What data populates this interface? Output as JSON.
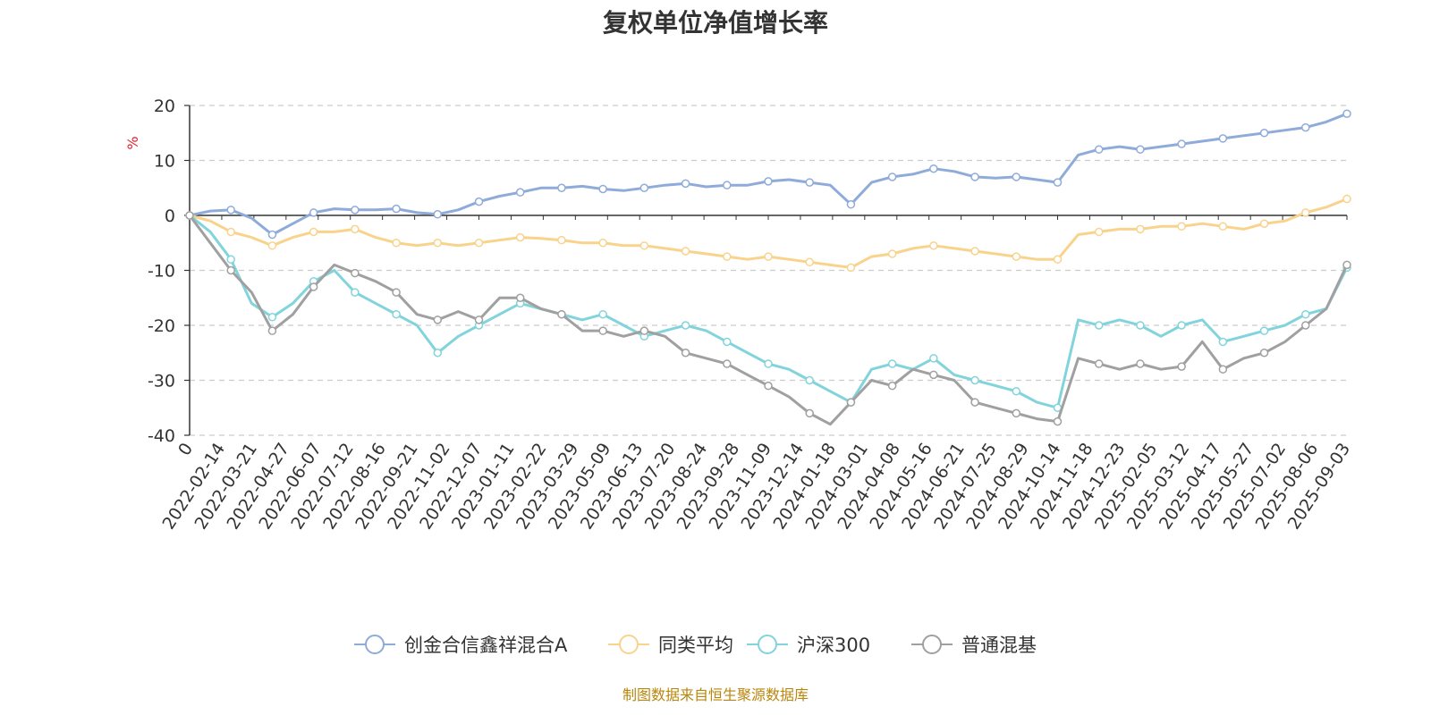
{
  "title": "复权单位净值增长率",
  "footer": "制图数据来自恒生聚源数据库",
  "chart_data": {
    "type": "line",
    "title": "复权单位净值增长率",
    "ylabel": "%",
    "ylim": [
      -40,
      20
    ],
    "yticks": [
      20,
      10,
      0,
      -10,
      -20,
      -30,
      -40
    ],
    "xtick_labels": [
      "0",
      "2022-02-14",
      "2022-03-21",
      "2022-04-27",
      "2022-06-07",
      "2022-07-12",
      "2022-08-16",
      "2022-09-21",
      "2022-11-02",
      "2022-12-07",
      "2023-01-11",
      "2023-02-22",
      "2023-03-29",
      "2023-05-09",
      "2023-06-13",
      "2023-07-20",
      "2023-08-24",
      "2023-09-28",
      "2023-11-09",
      "2023-12-14",
      "2024-01-18",
      "2024-03-01",
      "2024-04-08",
      "2024-05-16",
      "2024-06-21",
      "2024-07-25",
      "2024-08-29",
      "2024-10-14",
      "2024-11-18",
      "2024-12-23",
      "2025-02-05",
      "2025-03-12",
      "2025-04-17",
      "2025-05-27",
      "2025-07-02",
      "2025-08-06",
      "2025-09-03"
    ],
    "grid": true,
    "legend_position": "bottom",
    "series": [
      {
        "name": "创金合信鑫祥混合A",
        "color": "#8fabd9",
        "values": [
          0,
          0.8,
          1.0,
          -0.5,
          -3.5,
          -1.5,
          0.5,
          1.2,
          1.0,
          1.0,
          1.2,
          0.5,
          0.2,
          1.0,
          2.5,
          3.5,
          4.2,
          5.0,
          5.0,
          5.3,
          4.8,
          4.5,
          5.0,
          5.5,
          5.8,
          5.2,
          5.5,
          5.5,
          6.2,
          6.5,
          6.0,
          5.5,
          2.0,
          6.0,
          7.0,
          7.5,
          8.5,
          8.0,
          7.0,
          6.8,
          7.0,
          6.5,
          6.0,
          11.0,
          12.0,
          12.5,
          12.0,
          12.5,
          13.0,
          13.5,
          14.0,
          14.5,
          15.0,
          15.5,
          16.0,
          17.0,
          18.5
        ]
      },
      {
        "name": "同类平均",
        "color": "#f9d38c",
        "values": [
          0,
          -1.0,
          -3.0,
          -4.0,
          -5.5,
          -4.0,
          -3.0,
          -3.0,
          -2.5,
          -4.0,
          -5.0,
          -5.5,
          -5.0,
          -5.5,
          -5.0,
          -4.5,
          -4.0,
          -4.2,
          -4.5,
          -5.0,
          -5.0,
          -5.5,
          -5.5,
          -6.0,
          -6.5,
          -7.0,
          -7.5,
          -8.0,
          -7.5,
          -8.0,
          -8.5,
          -9.0,
          -9.5,
          -7.5,
          -7.0,
          -6.0,
          -5.5,
          -6.0,
          -6.5,
          -7.0,
          -7.5,
          -8.0,
          -8.0,
          -3.5,
          -3.0,
          -2.5,
          -2.5,
          -2.0,
          -2.0,
          -1.5,
          -2.0,
          -2.5,
          -1.5,
          -1.0,
          0.5,
          1.5,
          3.0
        ]
      },
      {
        "name": "沪深300",
        "color": "#82d4dc",
        "values": [
          0,
          -3.0,
          -8.0,
          -16.0,
          -18.5,
          -16.0,
          -12.0,
          -10.0,
          -14.0,
          -16.0,
          -18.0,
          -20.0,
          -25.0,
          -22.0,
          -20.0,
          -18.0,
          -16.0,
          -17.0,
          -18.0,
          -19.0,
          -18.0,
          -20.0,
          -22.0,
          -21.0,
          -20.0,
          -21.0,
          -23.0,
          -25.0,
          -27.0,
          -28.0,
          -30.0,
          -32.0,
          -34.0,
          -28.0,
          -27.0,
          -28.0,
          -26.0,
          -29.0,
          -30.0,
          -31.0,
          -32.0,
          -34.0,
          -35.0,
          -19.0,
          -20.0,
          -19.0,
          -20.0,
          -22.0,
          -20.0,
          -19.0,
          -23.0,
          -22.0,
          -21.0,
          -20.0,
          -18.0,
          -17.0,
          -9.5
        ]
      },
      {
        "name": "普通混基",
        "color": "#a0a0a0",
        "values": [
          0,
          -5.0,
          -10.0,
          -14.0,
          -21.0,
          -18.0,
          -13.0,
          -9.0,
          -10.5,
          -12.0,
          -14.0,
          -18.0,
          -19.0,
          -17.5,
          -19.0,
          -15.0,
          -15.0,
          -17.0,
          -18.0,
          -21.0,
          -21.0,
          -22.0,
          -21.0,
          -22.0,
          -25.0,
          -26.0,
          -27.0,
          -29.0,
          -31.0,
          -33.0,
          -36.0,
          -38.0,
          -34.0,
          -30.0,
          -31.0,
          -28.0,
          -29.0,
          -30.0,
          -34.0,
          -35.0,
          -36.0,
          -37.0,
          -37.5,
          -26.0,
          -27.0,
          -28.0,
          -27.0,
          -28.0,
          -27.5,
          -23.0,
          -28.0,
          -26.0,
          -25.0,
          -23.0,
          -20.0,
          -17.0,
          -9.0
        ]
      }
    ]
  }
}
